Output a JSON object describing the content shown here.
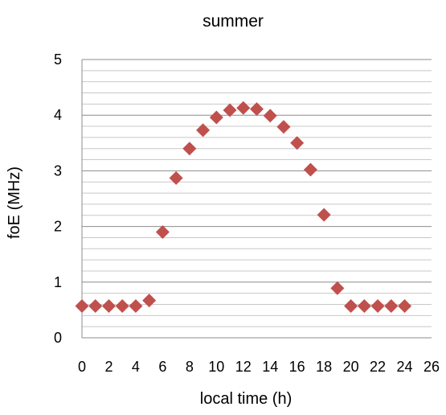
{
  "chart_data": {
    "type": "scatter",
    "title": "summer",
    "xlabel": "local time (h)",
    "ylabel": "foE (MHz)",
    "xlim": [
      0,
      26
    ],
    "ylim": [
      0,
      5
    ],
    "x_ticks": [
      "0",
      "2",
      "4",
      "6",
      "8",
      "10",
      "12",
      "14",
      "16",
      "18",
      "20",
      "22",
      "24",
      "26"
    ],
    "y_ticks": [
      "0",
      "1",
      "2",
      "3",
      "4",
      "5"
    ],
    "grid": {
      "major": true,
      "minor_y_step": 0.2
    },
    "marker": {
      "shape": "diamond",
      "color": "#c0504d"
    },
    "series": [
      {
        "x": [
          0,
          1,
          2,
          3,
          4,
          5,
          6,
          7,
          8,
          9,
          10,
          11,
          12,
          13,
          14,
          15,
          16,
          17,
          18,
          19,
          20,
          21,
          22,
          23,
          24
        ],
        "y": [
          0.57,
          0.57,
          0.57,
          0.57,
          0.57,
          0.67,
          1.9,
          2.87,
          3.4,
          3.73,
          3.96,
          4.09,
          4.13,
          4.11,
          3.99,
          3.79,
          3.5,
          3.02,
          2.21,
          0.89,
          0.57,
          0.57,
          0.57,
          0.57,
          0.57
        ]
      }
    ]
  }
}
